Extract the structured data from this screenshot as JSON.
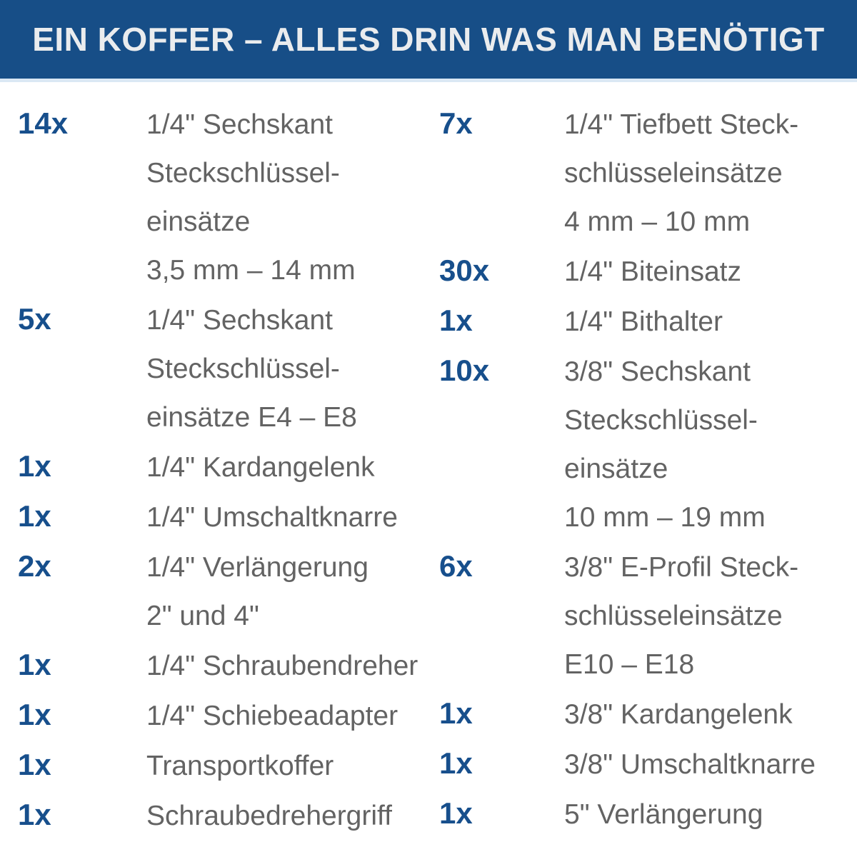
{
  "header": {
    "title": "EIN KOFFER – ALLES DRIN WAS MAN BENÖTIGT"
  },
  "colors": {
    "header_bg": "#174e87",
    "header_text": "#eaecee",
    "quantity": "#174f8c",
    "item_text": "#636363",
    "separator": "#dbe8f4",
    "page_bg": "#ffffff"
  },
  "columns": [
    {
      "side": "left",
      "items": [
        {
          "qty": "14x",
          "lines": [
            "1/4\" Sechskant",
            "Steckschlüssel-",
            "einsätze",
            "3,5 mm – 14 mm"
          ]
        },
        {
          "qty": "5x",
          "lines": [
            "1/4\" Sechskant",
            "Steckschlüssel-",
            "einsätze E4 – E8"
          ]
        },
        {
          "qty": "1x",
          "lines": [
            "1/4\" Kardangelenk"
          ]
        },
        {
          "qty": "1x",
          "lines": [
            "1/4\" Umschaltknarre"
          ]
        },
        {
          "qty": "2x",
          "lines": [
            "1/4\" Verlängerung",
            "2\" und 4\""
          ]
        },
        {
          "qty": "1x",
          "lines": [
            "1/4\" Schraubendreher"
          ]
        },
        {
          "qty": "1x",
          "lines": [
            "1/4\" Schiebeadapter"
          ]
        },
        {
          "qty": "1x",
          "lines": [
            "Transportkoffer"
          ]
        },
        {
          "qty": "1x",
          "lines": [
            "Schraubedrehergriff"
          ]
        }
      ]
    },
    {
      "side": "right",
      "items": [
        {
          "qty": "7x",
          "lines": [
            "1/4\" Tiefbett Steck-",
            "schlüsseleinsätze",
            "4 mm – 10 mm"
          ]
        },
        {
          "qty": "30x",
          "lines": [
            "1/4\" Biteinsatz"
          ]
        },
        {
          "qty": "1x",
          "lines": [
            "1/4\" Bithalter"
          ]
        },
        {
          "qty": "10x",
          "lines": [
            "3/8\" Sechskant",
            "Steckschlüssel-",
            "einsätze",
            "10 mm – 19 mm"
          ]
        },
        {
          "qty": "6x",
          "lines": [
            "3/8\" E-Profil Steck-",
            "schlüsseleinsätze",
            "E10 – E18"
          ]
        },
        {
          "qty": "1x",
          "lines": [
            "3/8\" Kardangelenk"
          ]
        },
        {
          "qty": "1x",
          "lines": [
            "3/8\" Umschaltknarre"
          ]
        },
        {
          "qty": "1x",
          "lines": [
            "5\" Verlängerung"
          ]
        }
      ]
    }
  ]
}
